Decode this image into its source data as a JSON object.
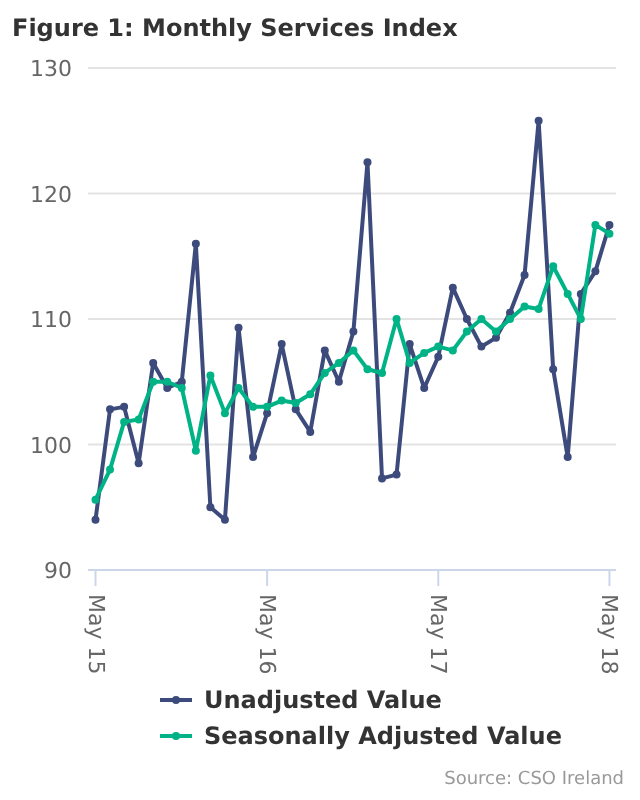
{
  "chart_data": {
    "type": "line",
    "title": "Figure 1: Monthly Services Index",
    "x": [
      "2015-05",
      "2015-06",
      "2015-07",
      "2015-08",
      "2015-09",
      "2015-10",
      "2015-11",
      "2015-12",
      "2016-01",
      "2016-02",
      "2016-03",
      "2016-04",
      "2016-05",
      "2016-06",
      "2016-07",
      "2016-08",
      "2016-09",
      "2016-10",
      "2016-11",
      "2016-12",
      "2017-01",
      "2017-02",
      "2017-03",
      "2017-04",
      "2017-05",
      "2017-06",
      "2017-07",
      "2017-08",
      "2017-09",
      "2017-10",
      "2017-11",
      "2017-12",
      "2018-01",
      "2018-02",
      "2018-03",
      "2018-04",
      "2018-05"
    ],
    "series": [
      {
        "name": "Unadjusted Value",
        "color": "#3d4b7c",
        "values": [
          94,
          102.8,
          103,
          98.5,
          106.5,
          104.5,
          105,
          116,
          95,
          94,
          109.3,
          99,
          102.5,
          108,
          102.8,
          101,
          107.5,
          105,
          109,
          122.5,
          97.3,
          97.6,
          108,
          104.5,
          107,
          112.5,
          110,
          107.8,
          108.5,
          110.5,
          113.5,
          125.8,
          106,
          99,
          112,
          113.8,
          117.5
        ]
      },
      {
        "name": "Seasonally Adjusted Value",
        "color": "#00b386",
        "values": [
          95.6,
          98,
          101.8,
          102,
          105,
          105,
          104.5,
          99.5,
          105.5,
          102.5,
          104.5,
          103,
          103,
          103.5,
          103.3,
          104,
          105.7,
          106.5,
          107.5,
          106,
          105.7,
          110,
          106.5,
          107.3,
          107.8,
          107.5,
          109,
          110,
          109,
          110,
          111,
          110.8,
          114.2,
          112,
          110,
          117.5,
          116.8
        ]
      }
    ],
    "xlim": [
      "2015-04-15",
      "2018-05-15"
    ],
    "xticks": [
      {
        "value": "2015-05",
        "label": "May 15"
      },
      {
        "value": "2016-05",
        "label": "May 16"
      },
      {
        "value": "2017-05",
        "label": "May 17"
      },
      {
        "value": "2018-05",
        "label": "May 18"
      }
    ],
    "ylim": [
      90,
      130
    ],
    "yticks": [
      90,
      100,
      110,
      120,
      130
    ],
    "grid": "y",
    "legend": "bottom",
    "marker": "circle",
    "line_style": "solid",
    "annotations": [
      "Source: CSO Ireland"
    ]
  }
}
